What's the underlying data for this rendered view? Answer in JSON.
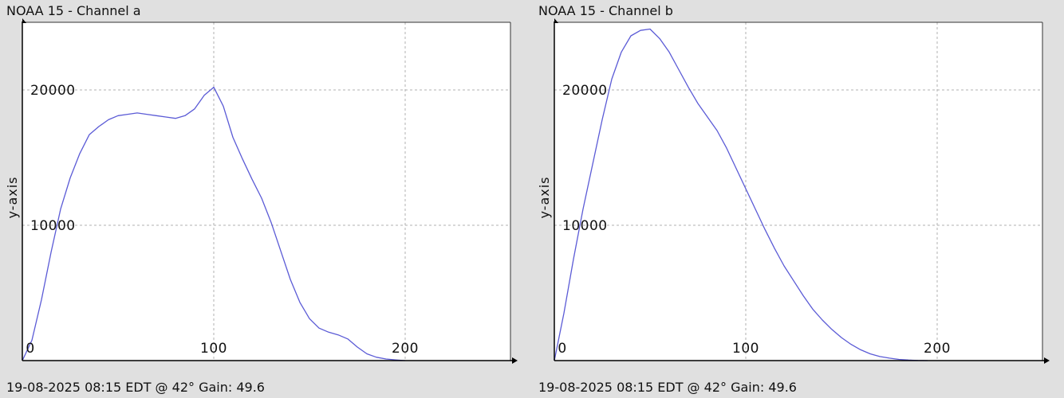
{
  "chart_data": [
    {
      "type": "line",
      "title": "NOAA 15 - Channel a",
      "footer": "19-08-2025 08:15 EDT @ 42° Gain: 49.6",
      "xlabel": "",
      "ylabel": "y-axis",
      "xlim": [
        0,
        255
      ],
      "ylim": [
        0,
        25000
      ],
      "x_ticks": [
        "0",
        "100",
        "200"
      ],
      "y_ticks": [
        "20000",
        "10000"
      ],
      "grid": true,
      "colors": {
        "line": "#5b5bd6",
        "axis": "#000000",
        "grid": "#b0b0b0",
        "plot_bg": "#ffffff"
      },
      "series": [
        {
          "x": [
            0,
            5,
            10,
            15,
            20,
            25,
            30,
            35,
            40,
            45,
            50,
            55,
            60,
            65,
            70,
            75,
            80,
            85,
            90,
            95,
            100,
            105,
            110,
            115,
            120,
            125,
            130,
            135,
            140,
            145,
            150,
            155,
            160,
            165,
            170,
            175,
            180,
            185,
            190,
            195,
            200
          ],
          "y": [
            0,
            1500,
            4500,
            8000,
            11200,
            13500,
            15300,
            16700,
            17300,
            17800,
            18100,
            18200,
            18300,
            18200,
            18100,
            18000,
            17900,
            18100,
            18600,
            19600,
            20200,
            18800,
            16500,
            14900,
            13400,
            12000,
            10200,
            8100,
            6000,
            4300,
            3100,
            2400,
            2100,
            1900,
            1600,
            1000,
            500,
            250,
            120,
            50,
            0
          ]
        }
      ]
    },
    {
      "type": "line",
      "title": "NOAA 15 - Channel b",
      "footer": "19-08-2025 08:15 EDT @ 42° Gain: 49.6",
      "xlabel": "",
      "ylabel": "y-axis",
      "xlim": [
        0,
        255
      ],
      "ylim": [
        0,
        25000
      ],
      "x_ticks": [
        "0",
        "100",
        "200"
      ],
      "y_ticks": [
        "20000",
        "10000"
      ],
      "grid": true,
      "colors": {
        "line": "#5b5bd6",
        "axis": "#000000",
        "grid": "#b0b0b0",
        "plot_bg": "#ffffff"
      },
      "series": [
        {
          "x": [
            0,
            5,
            10,
            15,
            20,
            25,
            30,
            35,
            40,
            45,
            50,
            55,
            60,
            65,
            70,
            75,
            80,
            85,
            90,
            95,
            100,
            105,
            110,
            115,
            120,
            125,
            130,
            135,
            140,
            145,
            150,
            155,
            160,
            165,
            170,
            175,
            180,
            185,
            190,
            195
          ],
          "y": [
            0,
            3500,
            7500,
            11200,
            14500,
            17800,
            20800,
            22800,
            24000,
            24400,
            24500,
            23800,
            22800,
            21500,
            20200,
            19000,
            18000,
            17000,
            15700,
            14200,
            12700,
            11200,
            9700,
            8300,
            7000,
            5900,
            4800,
            3800,
            3000,
            2300,
            1700,
            1200,
            800,
            500,
            300,
            180,
            90,
            40,
            10,
            0
          ]
        }
      ]
    }
  ]
}
